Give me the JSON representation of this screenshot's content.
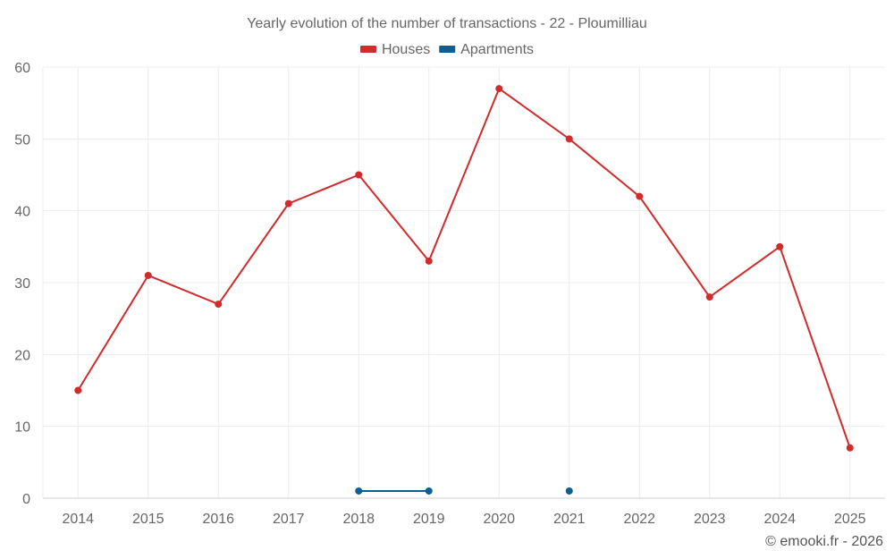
{
  "chart_data": {
    "type": "line",
    "title": "Yearly evolution of the number of transactions - 22 - Ploumilliau",
    "x": [
      "2014",
      "2015",
      "2016",
      "2017",
      "2018",
      "2019",
      "2020",
      "2021",
      "2022",
      "2023",
      "2024",
      "2025"
    ],
    "ylim": [
      0,
      60
    ],
    "yticks": [
      "0",
      "10",
      "20",
      "30",
      "40",
      "50",
      "60"
    ],
    "grid": true,
    "legend_position": "top-center",
    "series": [
      {
        "name": "Houses",
        "color": "#d12b2b",
        "values": [
          15,
          31,
          27,
          41,
          45,
          33,
          57,
          50,
          42,
          28,
          35,
          7
        ]
      },
      {
        "name": "Apartments",
        "color": "#0a5f96",
        "values": [
          null,
          null,
          null,
          null,
          1,
          1,
          null,
          1,
          null,
          null,
          null,
          null
        ]
      }
    ]
  },
  "credit": "© emooki.fr - 2026"
}
